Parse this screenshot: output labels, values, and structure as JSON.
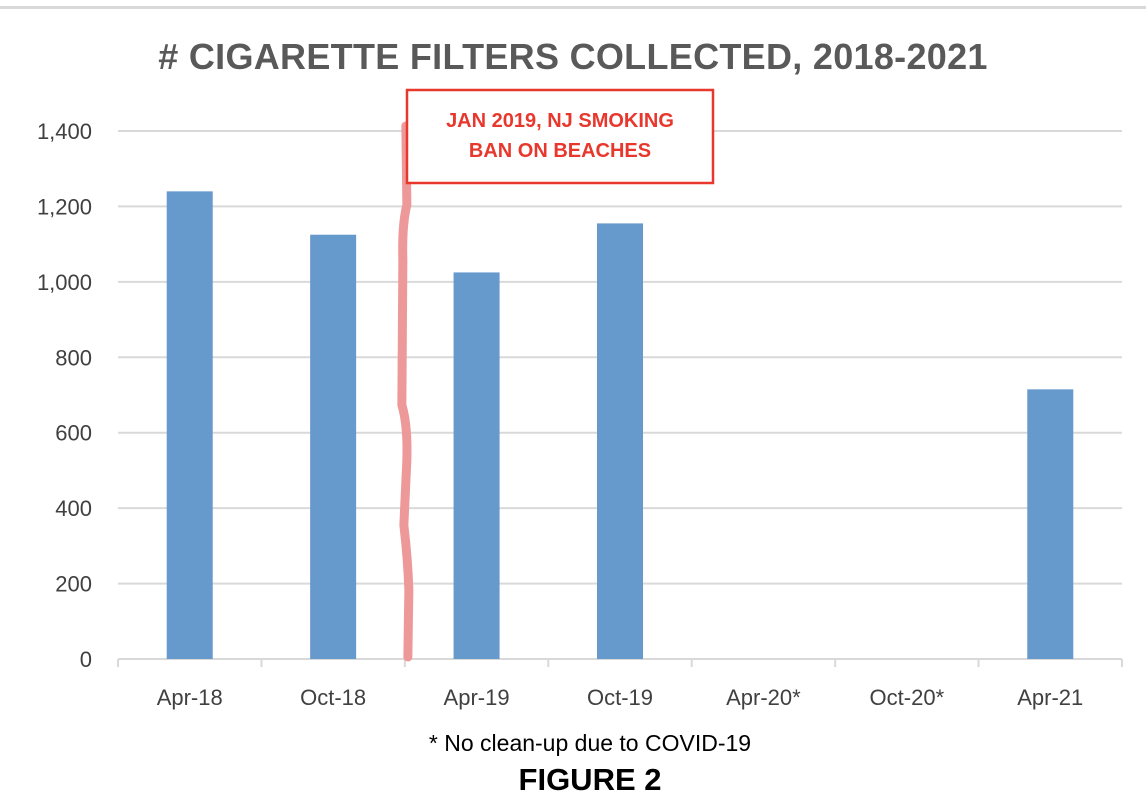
{
  "figure_label": "FIGURE 2",
  "footnote": "* No clean-up due to COVID-19",
  "colors": {
    "bar": "#6699cc",
    "grid": "#d9d9d9",
    "annotation": "#e8382e",
    "marker_line": "#ee9999",
    "tick_text": "#404040",
    "title": "#595959"
  },
  "chart_data": {
    "type": "bar",
    "title": "# CIGARETTE FILTERS COLLECTED, 2018-2021",
    "xlabel": "",
    "ylabel": "",
    "categories": [
      "Apr-18",
      "Oct-18",
      "Apr-19",
      "Oct-19",
      "Apr-20*",
      "Oct-20*",
      "Apr-21"
    ],
    "values": [
      1240,
      1125,
      1025,
      1155,
      null,
      null,
      715
    ],
    "ylim": [
      0,
      1400
    ],
    "yticks": [
      0,
      200,
      400,
      600,
      800,
      1000,
      1200,
      1400
    ],
    "ytick_labels": [
      "0",
      "200",
      "400",
      "600",
      "800",
      "1,000",
      "1,200",
      "1,400"
    ],
    "grid": true,
    "legend": "none",
    "annotations": [
      {
        "text_lines": [
          "JAN 2019, NJ SMOKING",
          "BAN ON BEACHES"
        ],
        "between_categories": [
          "Oct-18",
          "Apr-19"
        ]
      }
    ]
  }
}
